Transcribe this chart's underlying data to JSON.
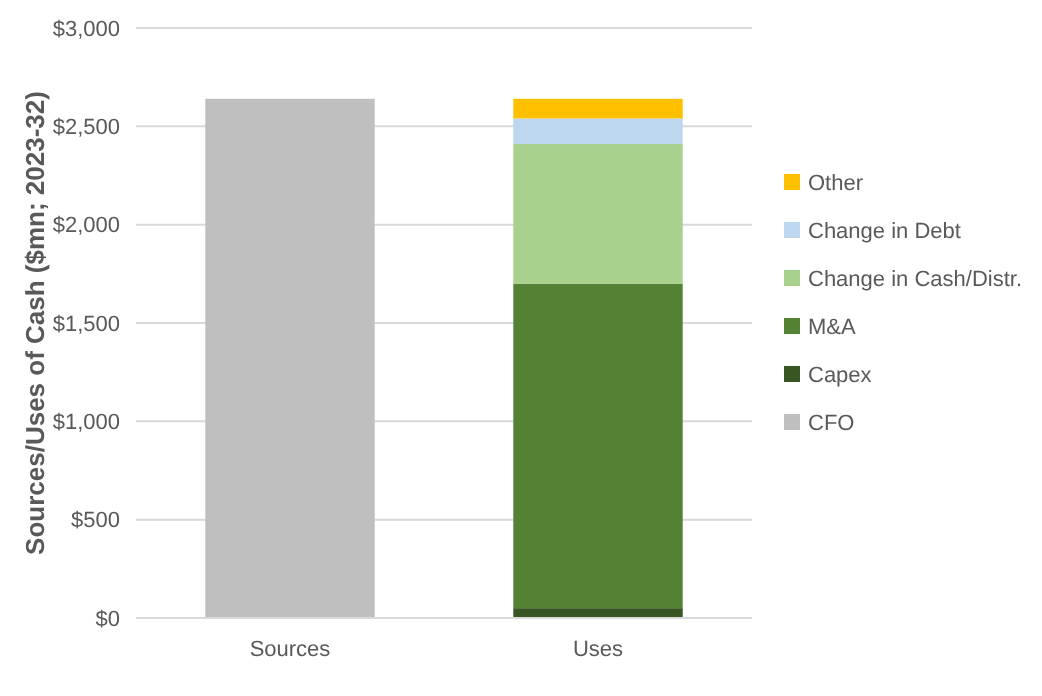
{
  "chart_data": {
    "type": "bar",
    "stacked": true,
    "ylabel": "Sources/Uses of Cash ($mn; 2023-32)",
    "categories": [
      "Sources",
      "Uses"
    ],
    "series": [
      {
        "name": "CFO",
        "color": "#bfbfbf",
        "values": [
          2640,
          null
        ]
      },
      {
        "name": "Capex",
        "color": "#375623",
        "values": [
          null,
          50
        ]
      },
      {
        "name": "M&A",
        "color": "#548235",
        "values": [
          null,
          1650
        ]
      },
      {
        "name": "Change in Cash/Distr.",
        "color": "#a9d18e",
        "values": [
          null,
          710
        ]
      },
      {
        "name": "Change in Debt",
        "color": "#bdd7ee",
        "values": [
          null,
          130
        ]
      },
      {
        "name": "Other",
        "color": "#ffc000",
        "values": [
          null,
          100
        ]
      }
    ],
    "ylim": [
      0,
      3000
    ],
    "yticks": [
      {
        "value": 0,
        "label": "$0"
      },
      {
        "value": 500,
        "label": "$500"
      },
      {
        "value": 1000,
        "label": "$1,000"
      },
      {
        "value": 1500,
        "label": "$1,500"
      },
      {
        "value": 2000,
        "label": "$2,000"
      },
      {
        "value": 2500,
        "label": "$2,500"
      },
      {
        "value": 3000,
        "label": "$3,000"
      }
    ],
    "grid": "y",
    "legend": "right"
  }
}
